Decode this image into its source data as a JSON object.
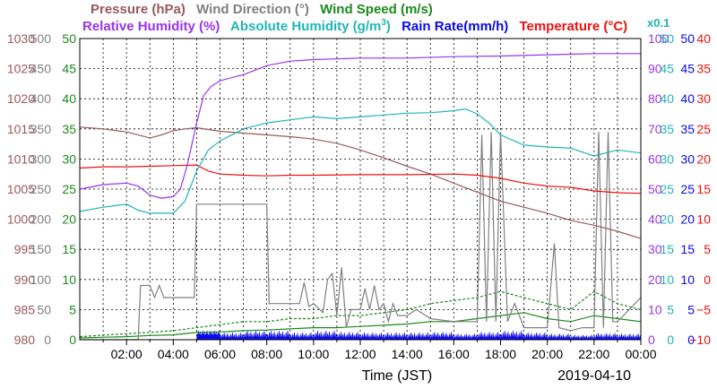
{
  "chart_data": {
    "type": "line",
    "date": "2019-04-10",
    "xlabel": "Time (JST)",
    "x_ticks": [
      "02:00",
      "04:00",
      "06:00",
      "08:00",
      "10:00",
      "12:00",
      "14:00",
      "16:00",
      "18:00",
      "20:00",
      "22:00",
      "00:00"
    ],
    "xlim_hours": [
      0,
      24
    ],
    "grid": true,
    "axes": [
      {
        "side": "left",
        "label": "Pressure (hPa)",
        "color": "#9a5a5a",
        "ticks": [
          "980",
          "985",
          "990",
          "995",
          "1000",
          "1005",
          "1010",
          "1015",
          "1020",
          "1025",
          "1030"
        ],
        "range": [
          980,
          1030
        ]
      },
      {
        "side": "left",
        "label": "Wind Direction (°)",
        "color": "#808080",
        "ticks": [
          "0",
          "50",
          "100",
          "150",
          "200",
          "250",
          "300",
          "350",
          "400",
          "450",
          "500"
        ],
        "range": [
          0,
          500
        ]
      },
      {
        "side": "left",
        "label": "Wind Speed (m/s)",
        "color": "#1a8a1a",
        "ticks": [
          "0",
          "5",
          "10",
          "15",
          "20",
          "25",
          "30",
          "35",
          "40",
          "45",
          "50"
        ],
        "range": [
          0,
          50
        ]
      },
      {
        "side": "right",
        "label": "Relative Humidity (%)",
        "color": "#9933ee",
        "ticks": [
          "0",
          "10",
          "20",
          "30",
          "40",
          "50",
          "60",
          "70",
          "80",
          "90",
          "100"
        ],
        "range": [
          0,
          100
        ]
      },
      {
        "side": "right",
        "label": "Absolute Humidity (g/m³)",
        "suffix": "x0.1",
        "color": "#22b5b5",
        "ticks": [
          "0",
          "5",
          "10",
          "15",
          "20",
          "25",
          "30",
          "35",
          "40",
          "45",
          "50"
        ],
        "range": [
          0,
          50
        ]
      },
      {
        "side": "right",
        "label": "Rain Rate(mm/h)",
        "color": "#0a0aee",
        "ticks": [
          "0",
          "5",
          "10",
          "15",
          "20",
          "25",
          "30",
          "35",
          "40",
          "45",
          "50"
        ],
        "range": [
          0,
          50
        ]
      },
      {
        "side": "right",
        "label": "Temperature (°C)",
        "color": "#ee1111",
        "ticks": [
          "−10",
          "−5",
          "0",
          "5",
          "10",
          "15",
          "20",
          "25",
          "30",
          "35",
          "40"
        ],
        "range": [
          -10,
          40
        ]
      }
    ],
    "title_parts": {
      "pressure": "Pressure (hPa)",
      "wind_dir": "Wind Direction (°)",
      "wind_speed": "Wind Speed (m/s)",
      "rel_hum": "Relative Humidity (%)",
      "abs_hum_main": "Absolute Humidity (g/m",
      "abs_hum_sup": "3",
      "abs_hum_end": ")",
      "rain": "Rain Rate(mm/h)",
      "temp": "Temperature (°C)",
      "scale_note": "x0.1"
    },
    "series": [
      {
        "name": "Pressure",
        "unit": "hPa",
        "color": "#9a5a5a",
        "points": [
          [
            0,
            1015.3
          ],
          [
            1,
            1015
          ],
          [
            2,
            1014.5
          ],
          [
            3,
            1013.5
          ],
          [
            3.5,
            1014
          ],
          [
            4,
            1014.7
          ],
          [
            4.5,
            1015
          ],
          [
            5,
            1015.2
          ],
          [
            6,
            1014.6
          ],
          [
            7,
            1014.3
          ],
          [
            8,
            1014
          ],
          [
            9,
            1013.7
          ],
          [
            10,
            1013.3
          ],
          [
            11,
            1012.6
          ],
          [
            12,
            1011.5
          ],
          [
            13,
            1010.2
          ],
          [
            14,
            1008.8
          ],
          [
            15,
            1007.5
          ],
          [
            16,
            1006
          ],
          [
            17,
            1004.5
          ],
          [
            18,
            1003
          ],
          [
            19,
            1002
          ],
          [
            20,
            1001
          ],
          [
            21,
            999.8
          ],
          [
            22,
            999
          ],
          [
            23,
            998
          ],
          [
            24,
            996.8
          ]
        ]
      },
      {
        "name": "Relative Humidity",
        "unit": "%",
        "color": "#9933ee",
        "points": [
          [
            0,
            50
          ],
          [
            1,
            51.5
          ],
          [
            2,
            52
          ],
          [
            2.5,
            51
          ],
          [
            3,
            48
          ],
          [
            3.5,
            47
          ],
          [
            4,
            47.5
          ],
          [
            4.3,
            50
          ],
          [
            4.6,
            58
          ],
          [
            5,
            72
          ],
          [
            5.3,
            81
          ],
          [
            5.6,
            84
          ],
          [
            6,
            86
          ],
          [
            7,
            88
          ],
          [
            8,
            91
          ],
          [
            9,
            92.5
          ],
          [
            10,
            93
          ],
          [
            12,
            93.5
          ],
          [
            14,
            93.5
          ],
          [
            16,
            94
          ],
          [
            18,
            94.2
          ],
          [
            20,
            94.6
          ],
          [
            22,
            95
          ],
          [
            24,
            95
          ]
        ]
      },
      {
        "name": "Absolute Humidity",
        "unit": "g/m³ x0.1",
        "color": "#22b5b5",
        "points": [
          [
            0,
            21.3
          ],
          [
            1,
            22
          ],
          [
            2,
            22.5
          ],
          [
            2.5,
            21.5
          ],
          [
            3,
            21
          ],
          [
            3.5,
            21
          ],
          [
            4,
            21
          ],
          [
            4.5,
            23
          ],
          [
            5,
            28
          ],
          [
            5.5,
            31.5
          ],
          [
            6,
            33
          ],
          [
            7,
            35
          ],
          [
            8,
            36
          ],
          [
            9,
            36.5
          ],
          [
            10,
            37
          ],
          [
            11,
            36.7
          ],
          [
            12,
            37
          ],
          [
            13,
            37.3
          ],
          [
            14,
            37.6
          ],
          [
            15,
            37.7
          ],
          [
            16,
            38
          ],
          [
            16.5,
            38.3
          ],
          [
            17,
            37.5
          ],
          [
            17.5,
            36
          ],
          [
            18,
            34
          ],
          [
            19,
            32.3
          ],
          [
            20,
            32
          ],
          [
            21,
            31.8
          ],
          [
            22,
            30.5
          ],
          [
            23,
            31.5
          ],
          [
            24,
            31
          ]
        ]
      },
      {
        "name": "Temperature",
        "unit": "°C",
        "color": "#ee1111",
        "points": [
          [
            0,
            18.5
          ],
          [
            1,
            18.7
          ],
          [
            2,
            18.7
          ],
          [
            3,
            18.8
          ],
          [
            4,
            18.9
          ],
          [
            5,
            19
          ],
          [
            5.5,
            18
          ],
          [
            6,
            17.5
          ],
          [
            7,
            17.3
          ],
          [
            8,
            17.2
          ],
          [
            9,
            17.3
          ],
          [
            10,
            17.3
          ],
          [
            12,
            17.4
          ],
          [
            14,
            17.4
          ],
          [
            16,
            17.5
          ],
          [
            17,
            17.3
          ],
          [
            18,
            16.8
          ],
          [
            19,
            16
          ],
          [
            20,
            15.5
          ],
          [
            21,
            15.3
          ],
          [
            22,
            14.7
          ],
          [
            23,
            14.4
          ],
          [
            24,
            14.3
          ]
        ]
      },
      {
        "name": "Wind Direction",
        "unit": "°",
        "color": "#808080",
        "points": [
          [
            0,
            0
          ],
          [
            2.3,
            0
          ],
          [
            2.5,
            0
          ],
          [
            2.6,
            90
          ],
          [
            3,
            90
          ],
          [
            3.2,
            70
          ],
          [
            3.4,
            90
          ],
          [
            3.6,
            70
          ],
          [
            3.8,
            70
          ],
          [
            4.9,
            70
          ],
          [
            5,
            225
          ],
          [
            8,
            225
          ],
          [
            8.1,
            60
          ],
          [
            9,
            60
          ],
          [
            9.4,
            60
          ],
          [
            9.6,
            95
          ],
          [
            9.8,
            55
          ],
          [
            10,
            60
          ],
          [
            10.4,
            45
          ],
          [
            10.6,
            100
          ],
          [
            10.8,
            110
          ],
          [
            11,
            40
          ],
          [
            11.2,
            120
          ],
          [
            11.4,
            20
          ],
          [
            11.6,
            50
          ],
          [
            12,
            50
          ],
          [
            12.2,
            85
          ],
          [
            12.4,
            50
          ],
          [
            12.6,
            90
          ],
          [
            12.8,
            50
          ],
          [
            13,
            60
          ],
          [
            13.2,
            30
          ],
          [
            13.4,
            60
          ],
          [
            13.6,
            40
          ],
          [
            14,
            40
          ],
          [
            14.4,
            50
          ],
          [
            14.8,
            40
          ],
          [
            15,
            35
          ],
          [
            16,
            30
          ],
          [
            17,
            30
          ],
          [
            17.2,
            340
          ],
          [
            17.4,
            30
          ],
          [
            17.6,
            345
          ],
          [
            17.8,
            30
          ],
          [
            18,
            345
          ],
          [
            18.3,
            30
          ],
          [
            18.6,
            60
          ],
          [
            19,
            20
          ],
          [
            20,
            20
          ],
          [
            20.3,
            160
          ],
          [
            20.5,
            20
          ],
          [
            21,
            15
          ],
          [
            21.5,
            20
          ],
          [
            22,
            20
          ],
          [
            22.2,
            345
          ],
          [
            22.4,
            20
          ],
          [
            22.6,
            345
          ],
          [
            22.8,
            30
          ],
          [
            23,
            30
          ],
          [
            23.5,
            50
          ],
          [
            24,
            70
          ]
        ]
      },
      {
        "name": "Wind Speed",
        "unit": "m/s",
        "color": "#1a8a1a",
        "points": [
          [
            0,
            0.3
          ],
          [
            2,
            0.5
          ],
          [
            3,
            0.7
          ],
          [
            4,
            0.8
          ],
          [
            5,
            1.2
          ],
          [
            6,
            1.3
          ],
          [
            7,
            1.5
          ],
          [
            8,
            1.6
          ],
          [
            9,
            1.8
          ],
          [
            10,
            2
          ],
          [
            11,
            2
          ],
          [
            12,
            2.2
          ],
          [
            13,
            2.4
          ],
          [
            14,
            2.6
          ],
          [
            15,
            3
          ],
          [
            16,
            3
          ],
          [
            17,
            3.5
          ],
          [
            18,
            4
          ],
          [
            19,
            4.5
          ],
          [
            20,
            3.5
          ],
          [
            21,
            3
          ],
          [
            22,
            4
          ],
          [
            23,
            3.5
          ],
          [
            24,
            3
          ]
        ]
      },
      {
        "name": "Wind Gust",
        "unit": "m/s",
        "color": "#1a8a1a",
        "dashed": true,
        "points": [
          [
            0,
            0.5
          ],
          [
            2,
            1
          ],
          [
            3,
            1.2
          ],
          [
            4,
            1.5
          ],
          [
            5,
            2
          ],
          [
            6,
            2.5
          ],
          [
            7,
            3
          ],
          [
            8,
            3
          ],
          [
            9,
            3.5
          ],
          [
            10,
            3.5
          ],
          [
            11,
            4
          ],
          [
            12,
            4
          ],
          [
            13,
            4.5
          ],
          [
            14,
            5
          ],
          [
            15,
            6
          ],
          [
            16,
            6.5
          ],
          [
            17,
            7
          ],
          [
            18,
            8
          ],
          [
            19,
            7
          ],
          [
            20,
            6
          ],
          [
            21,
            5
          ],
          [
            22,
            8
          ],
          [
            23,
            6
          ],
          [
            24,
            5
          ]
        ]
      },
      {
        "name": "Rain Rate",
        "unit": "mm/h",
        "color": "#0a0aee",
        "bursts": [
          [
            5,
            1.5
          ],
          [
            5.5,
            1.5
          ],
          [
            6,
            1.2
          ],
          [
            7,
            1.5
          ],
          [
            8,
            1.5
          ],
          [
            9,
            1.2
          ],
          [
            10,
            1.5
          ],
          [
            11,
            1.3
          ],
          [
            12,
            1.2
          ],
          [
            13,
            1.2
          ],
          [
            14,
            1.2
          ],
          [
            15,
            1.3
          ],
          [
            16,
            1
          ],
          [
            17,
            1.3
          ],
          [
            18,
            1.5
          ],
          [
            19,
            1.2
          ],
          [
            20,
            1
          ],
          [
            21,
            0.8
          ],
          [
            22,
            1.1
          ],
          [
            23,
            1
          ],
          [
            24,
            0.8
          ]
        ]
      }
    ]
  }
}
